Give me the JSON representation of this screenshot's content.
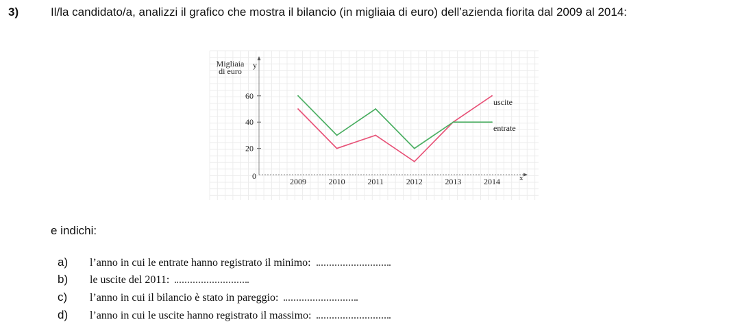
{
  "question": {
    "number": "3)",
    "text": "Il/la candidato/a, analizzi il grafico che mostra il bilancio (in migliaia di euro) dell’azienda fiorita dal 2009 al 2014:"
  },
  "chart_data": {
    "type": "line",
    "ylabel_lines": [
      "Migliaia",
      "di euro"
    ],
    "y_axis_letter": "y",
    "x_axis_letter": "x",
    "x": [
      "2009",
      "2010",
      "2011",
      "2012",
      "2013",
      "2014"
    ],
    "y_ticks": [
      0,
      20,
      40,
      60
    ],
    "ylim": [
      0,
      70
    ],
    "grid": true,
    "series": [
      {
        "name": "uscite",
        "values": [
          50,
          20,
          30,
          10,
          40,
          60
        ],
        "color": "#e8557a"
      },
      {
        "name": "entrate",
        "values": [
          60,
          30,
          50,
          20,
          40,
          40
        ],
        "color": "#4caf63"
      }
    ]
  },
  "intro": "e indichi:",
  "items": [
    {
      "letter": "a)",
      "text": "l’anno in cui le entrate hanno registrato il minimo:"
    },
    {
      "letter": "b)",
      "text": "le uscite del 2011:"
    },
    {
      "letter": "c)",
      "text": "l’anno in cui il bilancio è stato in pareggio:"
    },
    {
      "letter": "d)",
      "text": "l’anno in cui le uscite hanno registrato il massimo:"
    }
  ]
}
